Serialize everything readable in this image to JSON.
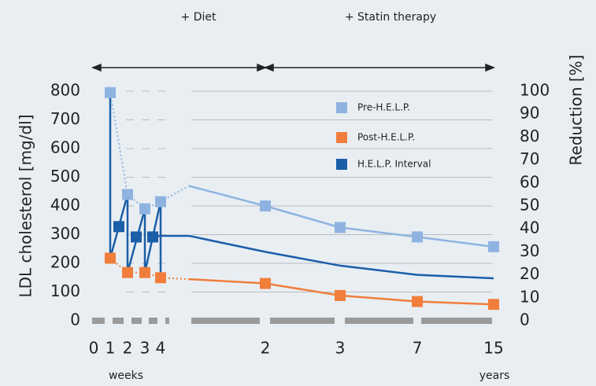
{
  "chart_data": {
    "type": "line",
    "annotations": [
      "+ Diet",
      "+ Statin therapy"
    ],
    "ylabel": "LDL cholesterol [mg/dl]",
    "y2label": "Reduction [%]",
    "xunits": [
      "weeks",
      "years"
    ],
    "categories": [
      "0",
      "1",
      null,
      "2",
      null,
      "3",
      null,
      "4",
      null,
      "2",
      "3",
      "7",
      "15"
    ],
    "ylim": [
      0,
      800
    ],
    "yticks": [
      0,
      100,
      200,
      300,
      400,
      500,
      600,
      700,
      800
    ],
    "y2lim": [
      0,
      100
    ],
    "y2ticks": [
      0,
      10,
      20,
      30,
      40,
      50,
      60,
      70,
      80,
      90,
      100
    ],
    "grid": true,
    "legend": "upper right",
    "series": [
      {
        "name": "Pre-H.E.L.P.",
        "color": "#8fb3e0",
        "values": [
          null,
          795,
          null,
          440,
          null,
          390,
          null,
          415,
          470,
          400,
          325,
          292,
          258
        ]
      },
      {
        "name": "Post-H.E.L.P.",
        "color": "#f07e3a",
        "values": [
          null,
          218,
          null,
          168,
          null,
          168,
          null,
          150,
          145,
          130,
          88,
          67,
          57
        ]
      },
      {
        "name": "H.E.L.P. Interval",
        "color": "#1b5ea8",
        "axis": "y2",
        "values": [
          null,
          null,
          41,
          null,
          36.5,
          null,
          36.5,
          37,
          37,
          30,
          24,
          20,
          18.5
        ]
      }
    ]
  }
}
